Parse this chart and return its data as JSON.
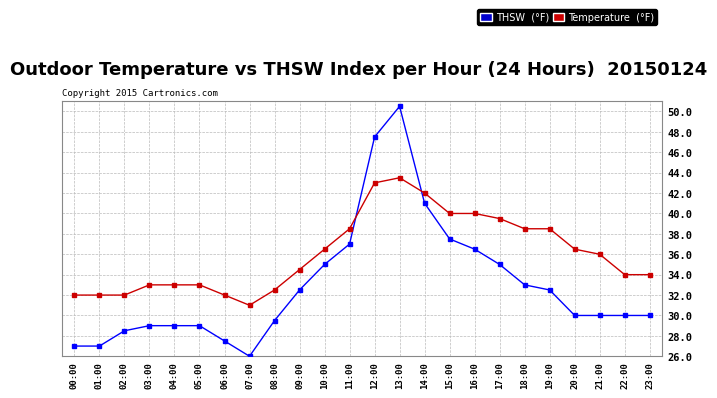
{
  "title": "Outdoor Temperature vs THSW Index per Hour (24 Hours)  20150124",
  "copyright": "Copyright 2015 Cartronics.com",
  "hours": [
    "00:00",
    "01:00",
    "02:00",
    "03:00",
    "04:00",
    "05:00",
    "06:00",
    "07:00",
    "08:00",
    "09:00",
    "10:00",
    "11:00",
    "12:00",
    "13:00",
    "14:00",
    "15:00",
    "16:00",
    "17:00",
    "18:00",
    "19:00",
    "20:00",
    "21:00",
    "22:00",
    "23:00"
  ],
  "thsw": [
    27.0,
    27.0,
    28.5,
    29.0,
    29.0,
    29.0,
    27.5,
    26.0,
    29.5,
    32.5,
    35.0,
    37.0,
    47.5,
    50.5,
    41.0,
    37.5,
    36.5,
    35.0,
    33.0,
    32.5,
    30.0,
    30.0,
    30.0,
    30.0
  ],
  "temperature": [
    32.0,
    32.0,
    32.0,
    33.0,
    33.0,
    33.0,
    32.0,
    31.0,
    32.5,
    34.5,
    36.5,
    38.5,
    43.0,
    43.5,
    42.0,
    40.0,
    40.0,
    39.5,
    38.5,
    38.5,
    36.5,
    36.0,
    34.0,
    34.0
  ],
  "ylim": [
    26.0,
    51.0
  ],
  "yticks": [
    26.0,
    28.0,
    30.0,
    32.0,
    34.0,
    36.0,
    38.0,
    40.0,
    42.0,
    44.0,
    46.0,
    48.0,
    50.0
  ],
  "thsw_color": "#0000ff",
  "temp_color": "#cc0000",
  "bg_color": "#ffffff",
  "grid_color": "#bbbbbb",
  "title_fontsize": 13,
  "legend_thsw_bg": "#0000cc",
  "legend_temp_bg": "#cc0000"
}
